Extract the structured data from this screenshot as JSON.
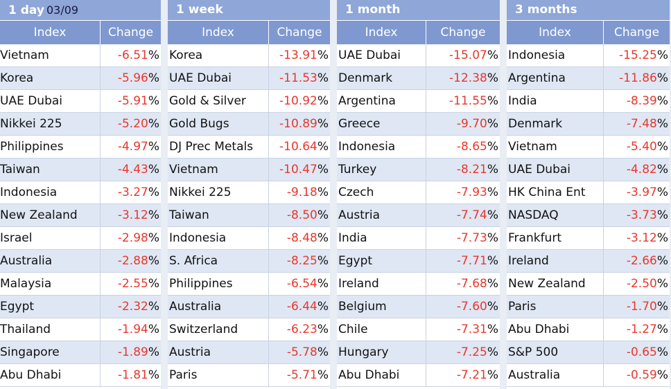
{
  "columns_header": {
    "index": "Index",
    "change": "Change"
  },
  "panels": [
    {
      "title": "1 day",
      "date": "03/09",
      "rows": [
        {
          "name": "Vietnam",
          "change": "-6.51"
        },
        {
          "name": "Korea",
          "change": "-5.96"
        },
        {
          "name": "UAE Dubai",
          "change": "-5.91"
        },
        {
          "name": "Nikkei 225",
          "change": "-5.20"
        },
        {
          "name": "Philippines",
          "change": "-4.97"
        },
        {
          "name": "Taiwan",
          "change": "-4.43"
        },
        {
          "name": "Indonesia",
          "change": "-3.27"
        },
        {
          "name": "New Zealand",
          "change": "-3.12"
        },
        {
          "name": "Israel",
          "change": "-2.98"
        },
        {
          "name": "Australia",
          "change": "-2.88"
        },
        {
          "name": "Malaysia",
          "change": "-2.55"
        },
        {
          "name": "Egypt",
          "change": "-2.32"
        },
        {
          "name": "Thailand",
          "change": "-1.94"
        },
        {
          "name": "Singapore",
          "change": "-1.89"
        },
        {
          "name": "Abu Dhabi",
          "change": "-1.81"
        }
      ]
    },
    {
      "title": "1 week",
      "date": "",
      "rows": [
        {
          "name": "Korea",
          "change": "-13.91"
        },
        {
          "name": "UAE Dubai",
          "change": "-11.53"
        },
        {
          "name": "Gold & Silver",
          "change": "-10.92"
        },
        {
          "name": "Gold Bugs",
          "change": "-10.89"
        },
        {
          "name": "DJ Prec Metals",
          "change": "-10.64"
        },
        {
          "name": "Vietnam",
          "change": "-10.47"
        },
        {
          "name": "Nikkei 225",
          "change": "-9.18"
        },
        {
          "name": "Taiwan",
          "change": "-8.50"
        },
        {
          "name": "Indonesia",
          "change": "-8.48"
        },
        {
          "name": "S. Africa",
          "change": "-8.25"
        },
        {
          "name": "Philippines",
          "change": "-6.54"
        },
        {
          "name": "Australia",
          "change": "-6.44"
        },
        {
          "name": "Switzerland",
          "change": "-6.23"
        },
        {
          "name": "Austria",
          "change": "-5.78"
        },
        {
          "name": "Paris",
          "change": "-5.71"
        }
      ]
    },
    {
      "title": "1 month",
      "date": "",
      "rows": [
        {
          "name": "UAE Dubai",
          "change": "-15.07"
        },
        {
          "name": "Denmark",
          "change": "-12.38"
        },
        {
          "name": "Argentina",
          "change": "-11.55"
        },
        {
          "name": "Greece",
          "change": "-9.70"
        },
        {
          "name": "Indonesia",
          "change": "-8.65"
        },
        {
          "name": "Turkey",
          "change": "-8.21"
        },
        {
          "name": "Czech",
          "change": "-7.93"
        },
        {
          "name": "Austria",
          "change": "-7.74"
        },
        {
          "name": "India",
          "change": "-7.73"
        },
        {
          "name": "Egypt",
          "change": "-7.71"
        },
        {
          "name": "Ireland",
          "change": "-7.68"
        },
        {
          "name": "Belgium",
          "change": "-7.60"
        },
        {
          "name": "Chile",
          "change": "-7.31"
        },
        {
          "name": "Hungary",
          "change": "-7.25"
        },
        {
          "name": "Abu Dhabi",
          "change": "-7.21"
        }
      ]
    },
    {
      "title": "3 months",
      "date": "",
      "rows": [
        {
          "name": "Indonesia",
          "change": "-15.25"
        },
        {
          "name": "Argentina",
          "change": "-11.86"
        },
        {
          "name": "India",
          "change": "-8.39"
        },
        {
          "name": "Denmark",
          "change": "-7.48"
        },
        {
          "name": "Vietnam",
          "change": "-5.40"
        },
        {
          "name": "UAE Dubai",
          "change": "-4.82"
        },
        {
          "name": "HK China Ent",
          "change": "-3.97"
        },
        {
          "name": "NASDAQ",
          "change": "-3.73"
        },
        {
          "name": "Frankfurt",
          "change": "-3.12"
        },
        {
          "name": "Ireland",
          "change": "-2.66"
        },
        {
          "name": "New Zealand",
          "change": "-2.50"
        },
        {
          "name": "Paris",
          "change": "-1.70"
        },
        {
          "name": "Abu Dhabi",
          "change": "-1.27"
        },
        {
          "name": "S&P 500",
          "change": "-0.65"
        },
        {
          "name": "Australia",
          "change": "-0.59"
        }
      ]
    }
  ],
  "percent_sign": "%",
  "colors": {
    "header_bg": "#7f98d0",
    "title_bg": "#8ea6d8",
    "negative": "#e8372c",
    "row_alt": "#dfe7f4"
  }
}
